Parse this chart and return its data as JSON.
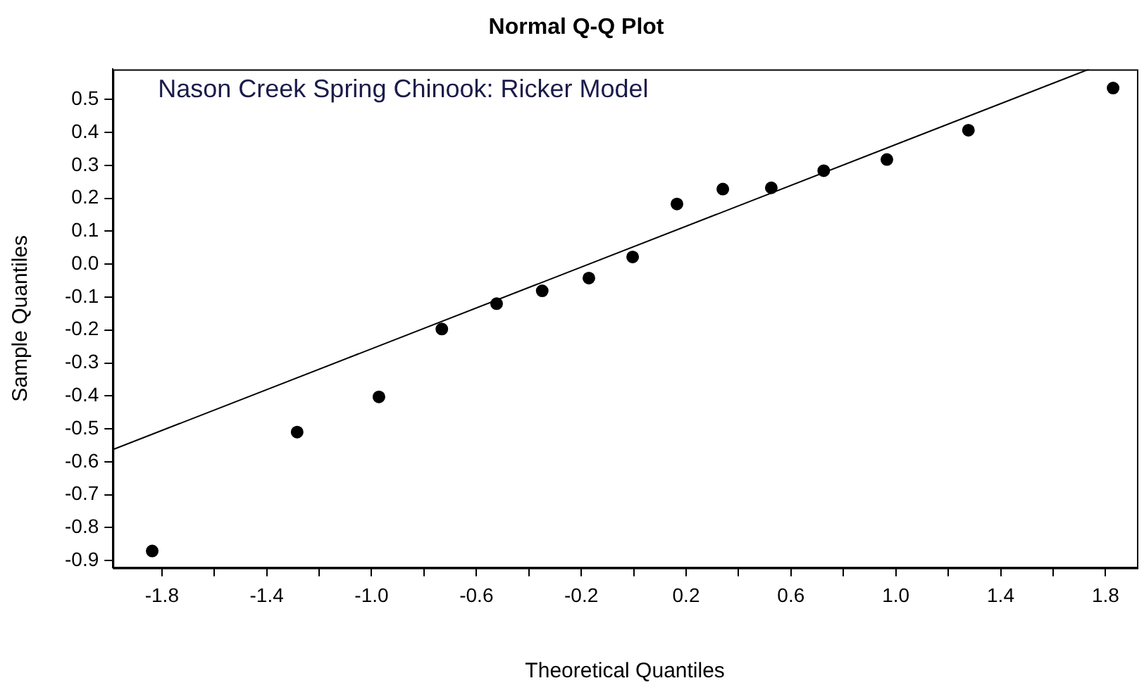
{
  "chart_data": {
    "type": "scatter",
    "title": "Normal Q-Q Plot",
    "xlabel": "Theoretical Quantiles",
    "ylabel": "Sample Quantiles",
    "annotations": [
      "Nason Creek Spring Chinook: Ricker Model"
    ],
    "series": [
      {
        "type": "scatter",
        "color": "#000000",
        "marker": "circle",
        "x": [
          -1.837,
          -1.284,
          -0.972,
          -0.732,
          -0.523,
          -0.349,
          -0.171,
          -0.004,
          0.165,
          0.34,
          0.525,
          0.725,
          0.966,
          1.277,
          1.829
        ],
        "values": [
          -0.871,
          -0.51,
          -0.403,
          -0.197,
          -0.12,
          -0.081,
          -0.042,
          0.022,
          0.183,
          0.228,
          0.232,
          0.284,
          0.318,
          0.407,
          0.535
        ]
      },
      {
        "type": "line",
        "color": "#000000",
        "marker": "none",
        "x": [
          -1.987,
          1.737
        ],
        "values": [
          -0.563,
          0.592
        ]
      }
    ],
    "xlim": [
      -1.987,
      1.92
    ],
    "ylim": [
      -0.922,
      0.592
    ],
    "xticks": [
      -1.8,
      {
        "value": -1.6,
        "label": null
      },
      -1.4,
      {
        "value": -1.2,
        "label": null
      },
      {
        "value": -1.0,
        "label": "-1.0"
      },
      {
        "value": -0.8,
        "label": null
      },
      -0.6,
      {
        "value": -0.4,
        "label": null
      },
      -0.2,
      {
        "value": 0,
        "label": null
      },
      0.2,
      {
        "value": 0.4,
        "label": null
      },
      0.6,
      {
        "value": 0.8,
        "label": null
      },
      {
        "value": 1.0,
        "label": "1.0"
      },
      {
        "value": 1.2,
        "label": null
      },
      1.4,
      {
        "value": 1.6,
        "label": null
      },
      1.8
    ],
    "yticks": [
      0.5,
      0.4,
      0.3,
      0.2,
      0.1,
      {
        "value": 0,
        "label": "0.0"
      },
      -0.1,
      -0.2,
      -0.3,
      -0.4,
      -0.5,
      -0.6,
      -0.7,
      -0.8,
      -0.9
    ],
    "grid": false,
    "legend": false
  }
}
